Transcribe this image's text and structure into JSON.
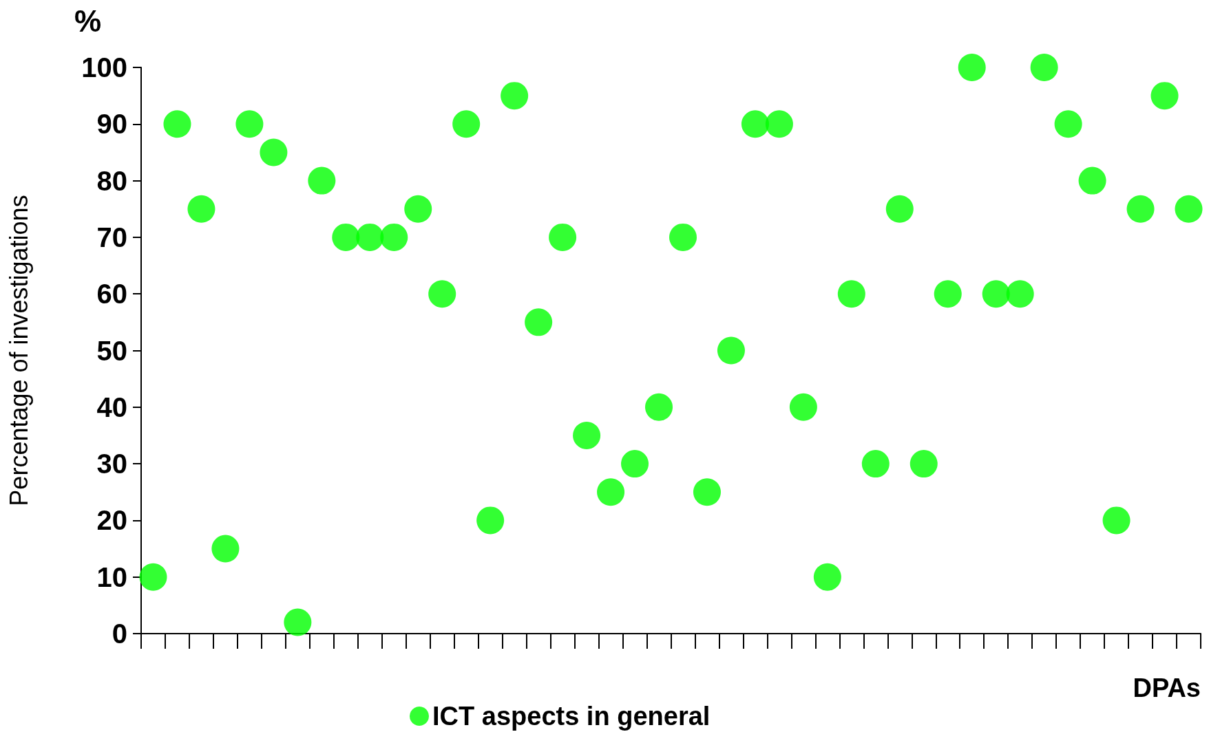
{
  "chart_data": {
    "type": "scatter",
    "xlabel": "DPAs",
    "ylabel": "Percentage of investigations",
    "annotations": [
      "%"
    ],
    "categories": [
      null,
      null,
      null,
      null,
      null,
      null,
      null,
      null,
      null,
      null,
      null,
      null,
      null,
      null,
      null,
      null,
      null,
      null,
      null,
      null,
      null,
      null,
      null,
      null,
      null,
      null,
      null,
      null,
      null,
      null,
      null,
      null,
      null,
      null,
      null,
      null,
      null,
      null,
      null,
      null,
      null,
      null,
      null,
      null
    ],
    "series": [
      {
        "name": "ICT aspects in general",
        "color": "#00ff00",
        "values": [
          10,
          90,
          75,
          15,
          90,
          85,
          2,
          80,
          70,
          70,
          70,
          75,
          60,
          90,
          20,
          95,
          55,
          70,
          35,
          25,
          30,
          40,
          70,
          25,
          50,
          90,
          90,
          40,
          10,
          60,
          30,
          75,
          30,
          60,
          100,
          60,
          60,
          100,
          90,
          80,
          20,
          75,
          95,
          75
        ]
      }
    ],
    "ylim": [
      0,
      100
    ],
    "yticks": [
      0,
      10,
      20,
      30,
      40,
      50,
      60,
      70,
      80,
      90,
      100
    ],
    "grid": false,
    "legend": "bottom",
    "marker": "circle",
    "tick_labels": "y"
  }
}
